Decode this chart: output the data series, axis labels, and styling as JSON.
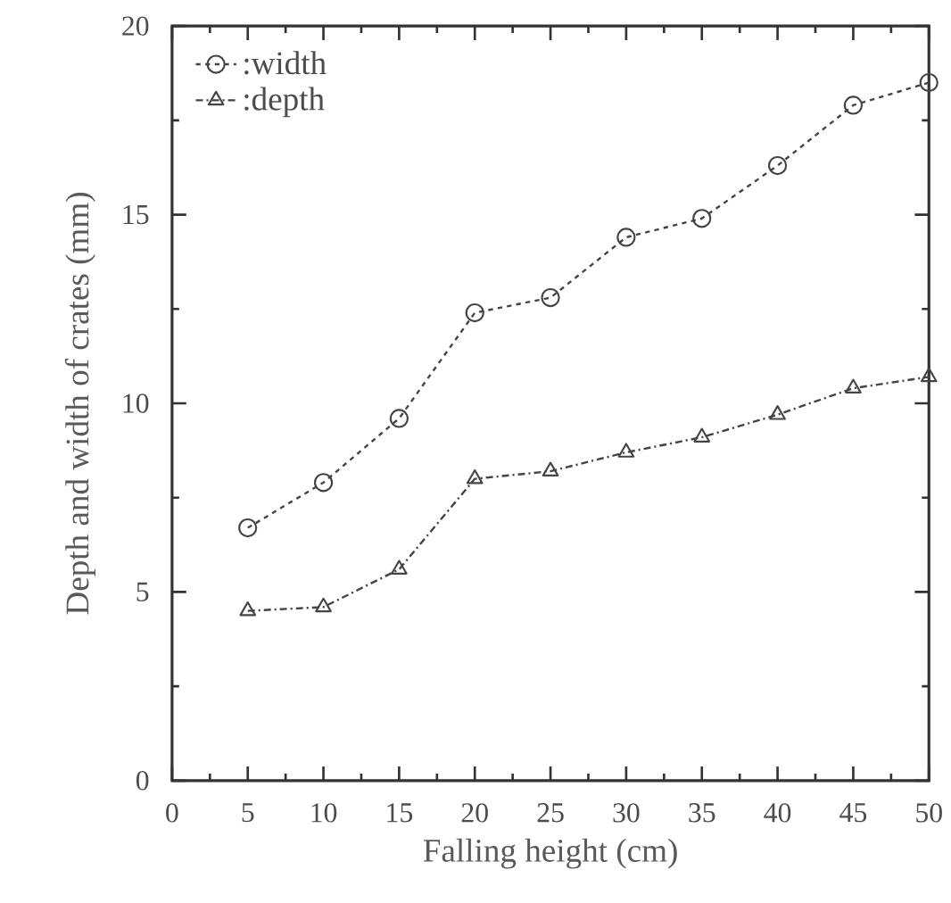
{
  "chart_data": {
    "type": "line",
    "xlabel": "Falling height (cm)",
    "ylabel": "Depth and width of crates (mm)",
    "x": [
      5,
      10,
      15,
      20,
      25,
      30,
      35,
      40,
      45,
      50
    ],
    "series": [
      {
        "name": ":width",
        "color": "#444444",
        "marker": "circle",
        "line_style": "dotted",
        "values": [
          6.7,
          7.9,
          9.6,
          12.4,
          12.8,
          14.4,
          14.9,
          16.3,
          17.9,
          18.5
        ]
      },
      {
        "name": ":depth",
        "color": "#444444",
        "marker": "triangle",
        "line_style": "dashed",
        "values": [
          4.5,
          4.6,
          5.6,
          8.0,
          8.2,
          8.7,
          9.1,
          9.7,
          10.4,
          10.7
        ]
      }
    ],
    "xlim": [
      0,
      50
    ],
    "ylim": [
      0,
      20
    ],
    "xticks": [
      0,
      5,
      10,
      15,
      20,
      25,
      30,
      35,
      40,
      45,
      50
    ],
    "yticks": [
      0,
      5,
      10,
      15,
      20
    ],
    "grid": false,
    "legend": "top left"
  }
}
